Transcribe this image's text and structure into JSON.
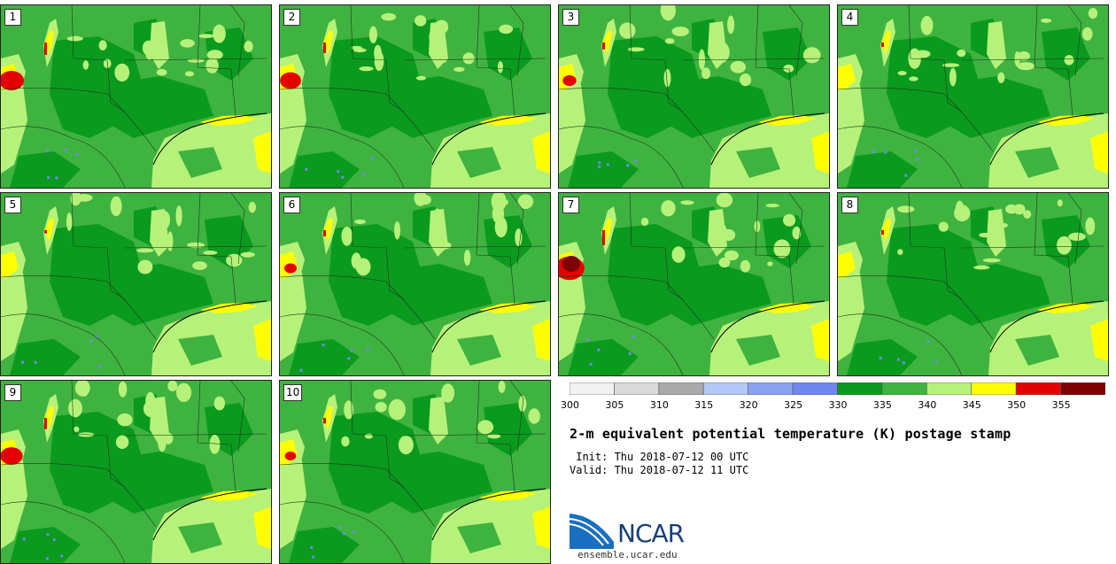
{
  "panels": [
    {
      "label": "1",
      "hot": 1.0
    },
    {
      "label": "2",
      "hot": 0.85
    },
    {
      "label": "3",
      "hot": 0.55
    },
    {
      "label": "4",
      "hot": 0.35
    },
    {
      "label": "5",
      "hot": 0.25
    },
    {
      "label": "6",
      "hot": 0.5
    },
    {
      "label": "7",
      "hot": 1.2
    },
    {
      "label": "8",
      "hot": 0.35
    },
    {
      "label": "9",
      "hot": 0.9
    },
    {
      "label": "10",
      "hot": 0.45
    }
  ],
  "colorbar": {
    "bins": [
      {
        "from": 300,
        "to": 305,
        "color": "#f2f2f2"
      },
      {
        "from": 305,
        "to": 310,
        "color": "#d9d9d9"
      },
      {
        "from": 310,
        "to": 315,
        "color": "#a9a9a9"
      },
      {
        "from": 315,
        "to": 320,
        "color": "#b3c8f7"
      },
      {
        "from": 320,
        "to": 325,
        "color": "#8aa1f2"
      },
      {
        "from": 325,
        "to": 330,
        "color": "#6f87ee"
      },
      {
        "from": 330,
        "to": 335,
        "color": "#0a9a1e"
      },
      {
        "from": 335,
        "to": 340,
        "color": "#3fb33f"
      },
      {
        "from": 340,
        "to": 345,
        "color": "#b6f27a"
      },
      {
        "from": 345,
        "to": 350,
        "color": "#ffff00"
      },
      {
        "from": 350,
        "to": 355,
        "color": "#e50000"
      },
      {
        "from": 355,
        "to": 360,
        "color": "#7f0000"
      }
    ],
    "ticks": [
      "300",
      "305",
      "310",
      "315",
      "320",
      "325",
      "330",
      "335",
      "340",
      "345",
      "350",
      "355"
    ]
  },
  "title": "2-m equivalent potential temperature (K) postage stamp",
  "init_line": " Init: Thu 2018-07-12 00 UTC",
  "valid_line": "Valid: Thu 2018-07-12 11 UTC",
  "logo": {
    "text": "NCAR",
    "brand_color": "#1a3e7a",
    "swoosh_color": "#1a6fc0"
  },
  "site": "ensemble.ucar.edu"
}
